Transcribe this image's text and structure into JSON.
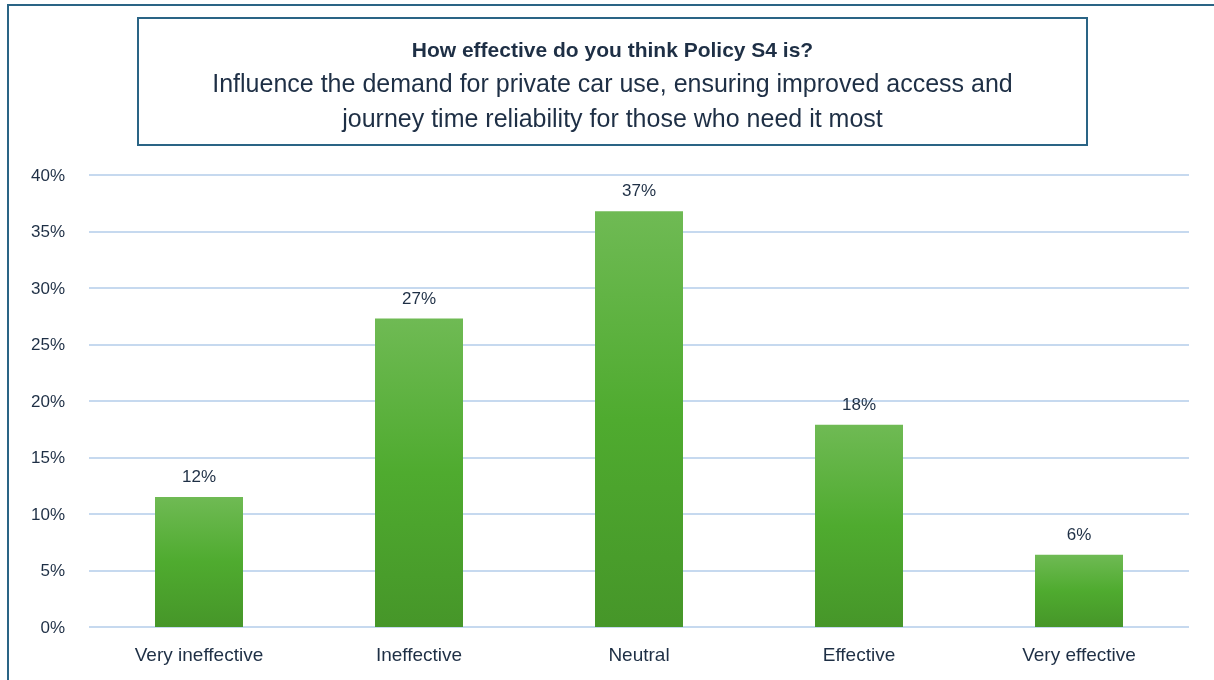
{
  "chart_data": {
    "type": "bar",
    "title": "How effective do you think Policy S4 is?",
    "subtitle": "Influence the demand for private car use, ensuring improved access and journey time reliability for those who need it most",
    "categories": [
      "Very ineffective",
      "Ineffective",
      "Neutral",
      "Effective",
      "Very effective"
    ],
    "values": [
      11.5,
      27.3,
      36.8,
      17.9,
      6.4
    ],
    "value_labels": [
      "12%",
      "27%",
      "37%",
      "18%",
      "6%"
    ],
    "color": "#4fab2f",
    "ylim": [
      0,
      40
    ],
    "yticks": [
      {
        "value": 0,
        "label": "0%"
      },
      {
        "value": 5,
        "label": "5%"
      },
      {
        "value": 10,
        "label": "10%"
      },
      {
        "value": 15,
        "label": "15%"
      },
      {
        "value": 20,
        "label": "20%"
      },
      {
        "value": 25,
        "label": "25%"
      },
      {
        "value": 30,
        "label": "30%"
      },
      {
        "value": 35,
        "label": "35%"
      },
      {
        "value": 40,
        "label": "40%"
      }
    ],
    "grid": "y"
  }
}
